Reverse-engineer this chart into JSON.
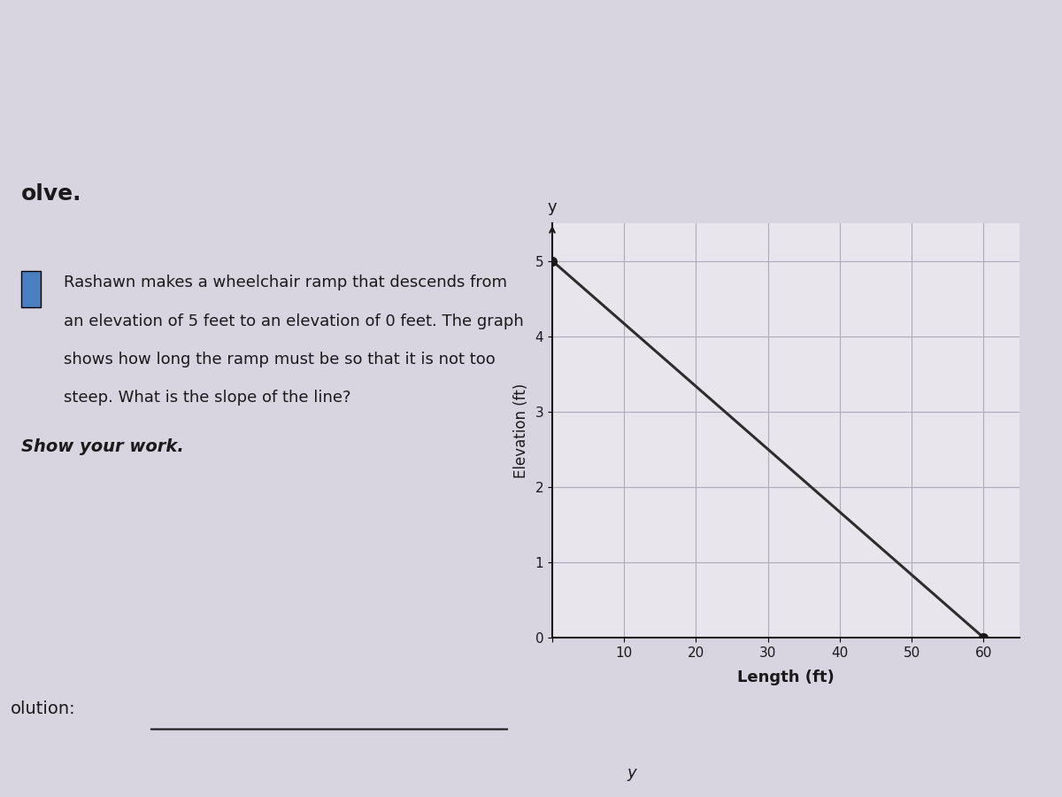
{
  "title_text": "olve.",
  "problem_text_lines": [
    "Rashawn makes a wheelchair ramp that descends from",
    "an elevation of 5 feet to an elevation of 0 feet. The graph",
    "shows how long the ramp must be so that it is not too",
    "steep. What is the slope of the line?"
  ],
  "show_work_text": "Show your work.",
  "solution_text": "olution:",
  "y_label_bottom": "y",
  "line_x": [
    0,
    60
  ],
  "line_y": [
    5,
    0
  ],
  "point1": [
    0,
    5
  ],
  "point2": [
    60,
    0
  ],
  "xlim": [
    0,
    65
  ],
  "ylim": [
    0,
    5.5
  ],
  "xticks": [
    0,
    10,
    20,
    30,
    40,
    50,
    60
  ],
  "yticks": [
    0,
    1,
    2,
    3,
    4,
    5
  ],
  "xlabel": "Length (ft)",
  "ylabel": "Elevation (ft)",
  "y_axis_label": "y",
  "bg_color": "#d8d4e0",
  "paper_color": "#e8e6ed",
  "graph_bg": "#e8e6ec",
  "line_color": "#2d2d2d",
  "dot_color": "#1a1a1a",
  "grid_color": "#b0aab8",
  "text_color": "#1a1a1a",
  "blue_square_color": "#4a7fc1"
}
